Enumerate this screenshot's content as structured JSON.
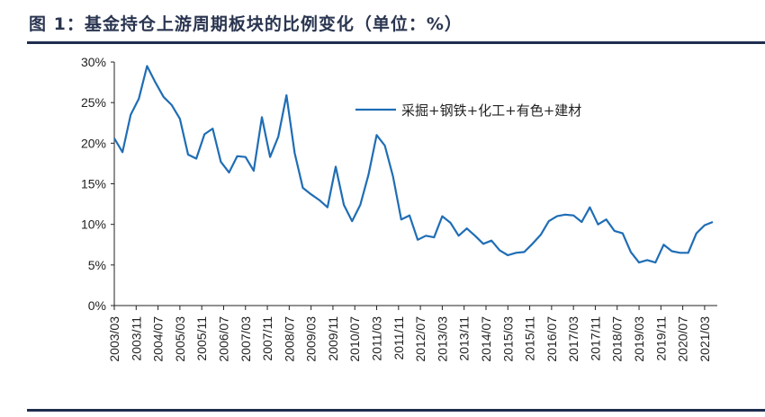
{
  "title": "图 1：基金持仓上游周期板块的比例变化（单位：%）",
  "chart_data": {
    "type": "line",
    "title": "图 1：基金持仓上游周期板块的比例变化（单位：%）",
    "xlabel": "",
    "ylabel": "",
    "ylim": [
      0,
      30
    ],
    "yticks": [
      "0%",
      "5%",
      "10%",
      "15%",
      "20%",
      "25%",
      "30%"
    ],
    "x_tick_labels": [
      "2003/03",
      "2003/11",
      "2004/07",
      "2005/03",
      "2005/11",
      "2006/07",
      "2007/03",
      "2007/11",
      "2008/07",
      "2009/03",
      "2009/11",
      "2010/07",
      "2011/03",
      "2011/11",
      "2012/07",
      "2013/03",
      "2013/11",
      "2014/07",
      "2015/03",
      "2015/11",
      "2016/07",
      "2017/03",
      "2017/11",
      "2018/07",
      "2019/03",
      "2019/11",
      "2020/07",
      "2021/03"
    ],
    "x_start": "2003/03",
    "x_frequency": "quarterly",
    "grid": false,
    "legend_position": "top-right",
    "series": [
      {
        "name": "采掘+钢铁+化工+有色+建材",
        "color": "#1f6db5",
        "values": [
          20.6,
          18.9,
          23.5,
          25.5,
          29.5,
          27.5,
          25.7,
          24.7,
          23.0,
          18.6,
          18.1,
          21.1,
          21.8,
          17.7,
          16.4,
          18.4,
          18.3,
          16.6,
          23.2,
          18.3,
          20.8,
          25.9,
          18.8,
          14.5,
          13.7,
          13.0,
          12.1,
          17.1,
          12.4,
          10.4,
          12.4,
          16.1,
          21.0,
          19.7,
          15.9,
          10.6,
          11.1,
          8.1,
          8.6,
          8.4,
          11.0,
          10.2,
          8.6,
          9.5,
          8.6,
          7.6,
          8.0,
          6.8,
          6.2,
          6.5,
          6.6,
          7.6,
          8.7,
          10.4,
          11.0,
          11.2,
          11.1,
          10.3,
          12.1,
          10.0,
          10.6,
          9.2,
          8.9,
          6.6,
          5.3,
          5.6,
          5.3,
          7.5,
          6.7,
          6.5,
          6.5,
          8.9,
          9.9,
          10.3
        ]
      }
    ]
  }
}
